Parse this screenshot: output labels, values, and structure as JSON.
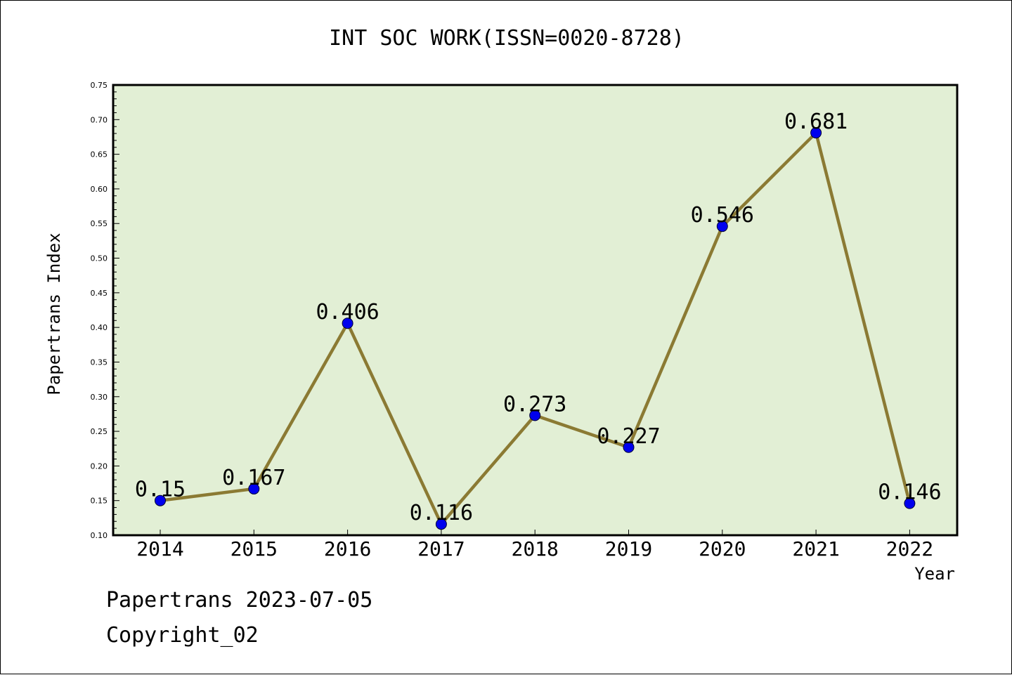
{
  "header": {
    "title": "INT SOC WORK(ISSN=0020-8728)"
  },
  "footer": {
    "line1": "Papertrans 2023-07-05",
    "line2": "Copyright_02"
  },
  "colors": {
    "plot_bg": "#e2efd5",
    "line": "#8b7a33",
    "marker": "#0000ee",
    "frame": "#000000"
  },
  "chart_data": {
    "type": "line",
    "title": "INT SOC WORK(ISSN=0020-8728)",
    "xlabel": "Year",
    "ylabel": "Papertrans Index",
    "categories": [
      "2014",
      "2015",
      "2016",
      "2017",
      "2018",
      "2019",
      "2020",
      "2021",
      "2022"
    ],
    "values": [
      0.15,
      0.167,
      0.406,
      0.116,
      0.273,
      0.227,
      0.546,
      0.681,
      0.146
    ],
    "data_labels": [
      "0.15",
      "0.167",
      "0.406",
      "0.116",
      "0.273",
      "0.227",
      "0.546",
      "0.681",
      "0.146"
    ],
    "ylim": [
      0.1,
      0.75
    ],
    "yticks": [
      "0.10",
      "0.15",
      "0.20",
      "0.25",
      "0.30",
      "0.35",
      "0.40",
      "0.45",
      "0.50",
      "0.55",
      "0.60",
      "0.65",
      "0.70",
      "0.75"
    ],
    "grid": false,
    "legend": "none"
  }
}
